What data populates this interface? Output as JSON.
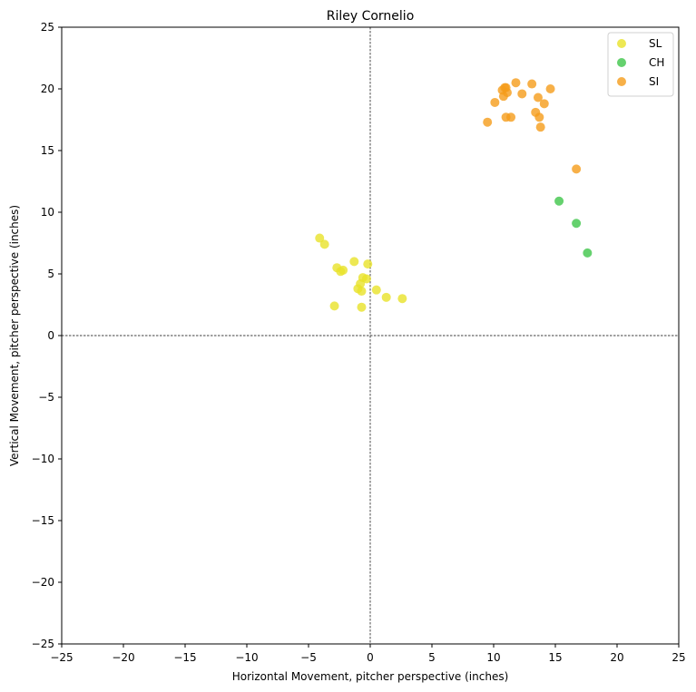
{
  "chart_data": {
    "type": "scatter",
    "title": "Riley Cornelio",
    "xlabel": "Horizontal Movement, pitcher perspective (inches)",
    "ylabel": "Vertical Movement, pitcher perspective (inches)",
    "xlim": [
      -25,
      25
    ],
    "ylim": [
      -25,
      25
    ],
    "xticks": [
      -25,
      -20,
      -15,
      -10,
      -5,
      0,
      5,
      10,
      15,
      20,
      25
    ],
    "yticks": [
      -25,
      -20,
      -15,
      -10,
      -5,
      0,
      5,
      10,
      15,
      20,
      25
    ],
    "grid": false,
    "reference_lines": {
      "x": 0,
      "y": 0,
      "style": "dashed"
    },
    "legend_position": "top-right",
    "series": [
      {
        "name": "SL",
        "color": "#e8e229",
        "points": [
          [
            -4.1,
            7.9
          ],
          [
            -3.7,
            7.4
          ],
          [
            -1.3,
            6.0
          ],
          [
            -0.2,
            5.8
          ],
          [
            -2.7,
            5.5
          ],
          [
            -2.4,
            5.2
          ],
          [
            -2.2,
            5.3
          ],
          [
            -0.6,
            4.7
          ],
          [
            -0.3,
            4.6
          ],
          [
            -0.8,
            4.2
          ],
          [
            -1.0,
            3.8
          ],
          [
            -0.7,
            3.6
          ],
          [
            0.5,
            3.7
          ],
          [
            1.3,
            3.1
          ],
          [
            2.6,
            3.0
          ],
          [
            -2.9,
            2.4
          ],
          [
            -0.7,
            2.3
          ]
        ]
      },
      {
        "name": "CH",
        "color": "#3ec64a",
        "points": [
          [
            15.3,
            10.9
          ],
          [
            16.7,
            9.1
          ],
          [
            17.6,
            6.7
          ]
        ]
      },
      {
        "name": "SI",
        "color": "#f59c1a",
        "points": [
          [
            11.8,
            20.5
          ],
          [
            13.1,
            20.4
          ],
          [
            10.9,
            20.1
          ],
          [
            11.0,
            20.1
          ],
          [
            14.6,
            20.0
          ],
          [
            10.7,
            19.9
          ],
          [
            11.1,
            19.7
          ],
          [
            12.3,
            19.6
          ],
          [
            10.8,
            19.4
          ],
          [
            13.6,
            19.3
          ],
          [
            10.1,
            18.9
          ],
          [
            14.1,
            18.8
          ],
          [
            13.4,
            18.1
          ],
          [
            11.0,
            17.7
          ],
          [
            11.4,
            17.7
          ],
          [
            13.7,
            17.7
          ],
          [
            9.5,
            17.3
          ],
          [
            13.8,
            16.9
          ],
          [
            16.7,
            13.5
          ]
        ]
      }
    ]
  }
}
